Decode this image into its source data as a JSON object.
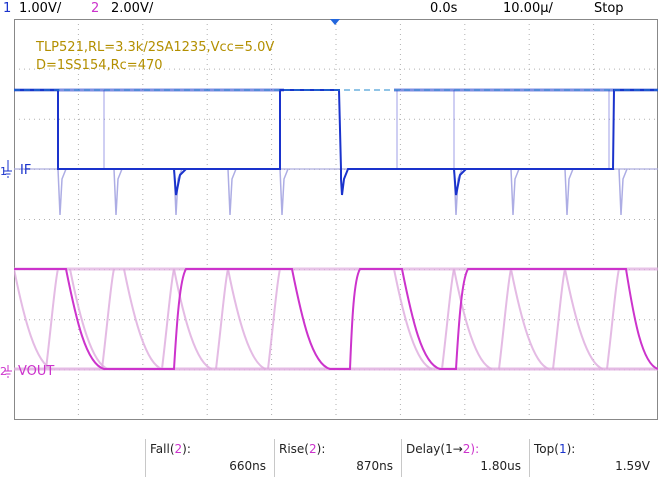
{
  "header": {
    "ch1_num": "1",
    "ch1_scale": "1.00V/",
    "ch2_num": "2",
    "ch2_scale": "2.00V/",
    "time_offset": "0.0s",
    "time_scale": "10.00µ/",
    "run_state": "Stop"
  },
  "annotation": {
    "line1": "TLP521,RL=3.3k/2SA1235,Vcc=5.0V",
    "line2": "D=1SS154,Rc=470"
  },
  "traces": {
    "ch1_label": "IF",
    "ch2_label": "VOUT",
    "ch1_marker": "1",
    "ch2_marker": "2"
  },
  "measurements": [
    {
      "label_pre": "Fall(",
      "label_ch": "2",
      "label_post": "):",
      "value": "660ns"
    },
    {
      "label_pre": "Rise(",
      "label_ch": "2",
      "label_post": "):",
      "value": "870ns"
    },
    {
      "label_pre": "Delay(1",
      "label_ch": "→",
      "label_post": "2):",
      "value": "1.80us"
    },
    {
      "label_pre": "Top(",
      "label_ch": "1",
      "label_post": "):",
      "value": "1.59V"
    }
  ],
  "colors": {
    "ch1": "#1a33cc",
    "ch2": "#cc33cc",
    "annotation": "#b38f00",
    "grid": "#b0b0b0"
  }
}
